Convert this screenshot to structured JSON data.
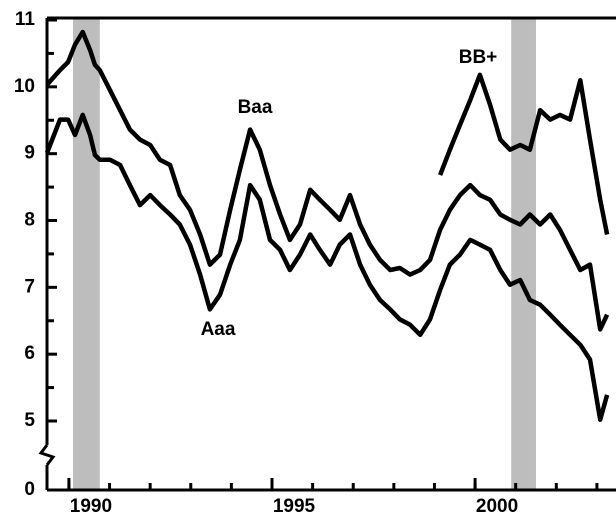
{
  "chart_data": {
    "type": "line",
    "x": [
      1989.46,
      1989.78,
      1989.98,
      1990.15,
      1990.34,
      1990.52,
      1990.64,
      1990.76,
      1991.01,
      1991.26,
      1991.5,
      1991.75,
      1992.0,
      1992.24,
      1992.49,
      1992.73,
      1992.98,
      1993.23,
      1993.47,
      1993.72,
      1993.97,
      1994.21,
      1994.46,
      1994.7,
      1994.95,
      1995.2,
      1995.44,
      1995.69,
      1995.94,
      1996.18,
      1996.43,
      1996.67,
      1996.92,
      1997.17,
      1997.41,
      1997.66,
      1997.91,
      1998.15,
      1998.4,
      1998.65,
      1998.89,
      1999.14,
      1999.38,
      1999.63,
      1999.88,
      2000.12,
      2000.37,
      2000.62,
      2000.86,
      2001.11,
      2001.35,
      2001.6,
      2001.85,
      2002.09,
      2002.34,
      2002.59,
      2002.83,
      2003.08,
      2003.25
    ],
    "series": [
      {
        "name": "Baa",
        "color": "#000000",
        "values": [
          10.03,
          10.25,
          10.37,
          10.63,
          10.82,
          10.55,
          10.33,
          10.25,
          9.95,
          9.65,
          9.36,
          9.21,
          9.13,
          8.91,
          8.83,
          8.38,
          8.16,
          7.79,
          7.34,
          7.49,
          8.16,
          8.76,
          9.36,
          9.06,
          8.53,
          8.09,
          7.71,
          7.94,
          8.46,
          8.31,
          8.16,
          8.01,
          8.38,
          7.94,
          7.64,
          7.41,
          7.26,
          7.29,
          7.19,
          7.26,
          7.41,
          7.86,
          8.16,
          8.38,
          8.53,
          8.38,
          8.31,
          8.09,
          8.01,
          7.94,
          8.09,
          7.94,
          8.09,
          7.86,
          7.56,
          7.26,
          7.34,
          6.37,
          6.59
        ]
      },
      {
        "name": "Aaa",
        "color": "#000000",
        "values": [
          9.01,
          9.51,
          9.51,
          9.28,
          9.58,
          9.28,
          8.98,
          8.91,
          8.91,
          8.83,
          8.53,
          8.23,
          8.38,
          8.23,
          8.09,
          7.94,
          7.64,
          7.19,
          6.67,
          6.89,
          7.34,
          7.71,
          8.53,
          8.31,
          7.71,
          7.56,
          7.26,
          7.49,
          7.79,
          7.56,
          7.34,
          7.64,
          7.79,
          7.34,
          7.04,
          6.81,
          6.67,
          6.52,
          6.44,
          6.29,
          6.52,
          6.96,
          7.34,
          7.49,
          7.71,
          7.64,
          7.56,
          7.26,
          7.04,
          7.11,
          6.81,
          6.74,
          6.59,
          6.44,
          6.29,
          6.14,
          5.92,
          5.02,
          5.39
        ]
      },
      {
        "name": "BB+",
        "color": "#000000",
        "values": [
          null,
          null,
          null,
          null,
          null,
          null,
          null,
          null,
          null,
          null,
          null,
          null,
          null,
          null,
          null,
          null,
          null,
          null,
          null,
          null,
          null,
          null,
          null,
          null,
          null,
          null,
          null,
          null,
          null,
          null,
          null,
          null,
          null,
          null,
          null,
          null,
          null,
          null,
          null,
          null,
          null,
          8.68,
          9.06,
          9.43,
          9.8,
          10.18,
          9.73,
          9.21,
          9.06,
          9.13,
          9.06,
          9.65,
          9.51,
          9.58,
          9.51,
          10.1,
          9.21,
          8.31,
          7.79
        ]
      }
    ],
    "xlim": [
      1989.46,
      2003.47
    ],
    "xticks": [
      1990,
      1995,
      2000
    ],
    "xminor": [
      1990,
      1991,
      1992,
      1993,
      1994,
      1995,
      1996,
      1997,
      1998,
      1999,
      2000,
      2001,
      2002,
      2003
    ],
    "ylim": [
      0,
      11
    ],
    "yticks": [
      0,
      5,
      6,
      7,
      8,
      9,
      10,
      11
    ],
    "yminor": [
      5.5,
      6.5,
      7.5,
      8.5,
      9.5,
      10.5
    ],
    "axis_break": true,
    "shading": [
      [
        1990.1,
        1990.76
      ],
      [
        2000.89,
        2001.5
      ]
    ],
    "shading_color": "#bdbdbd"
  }
}
